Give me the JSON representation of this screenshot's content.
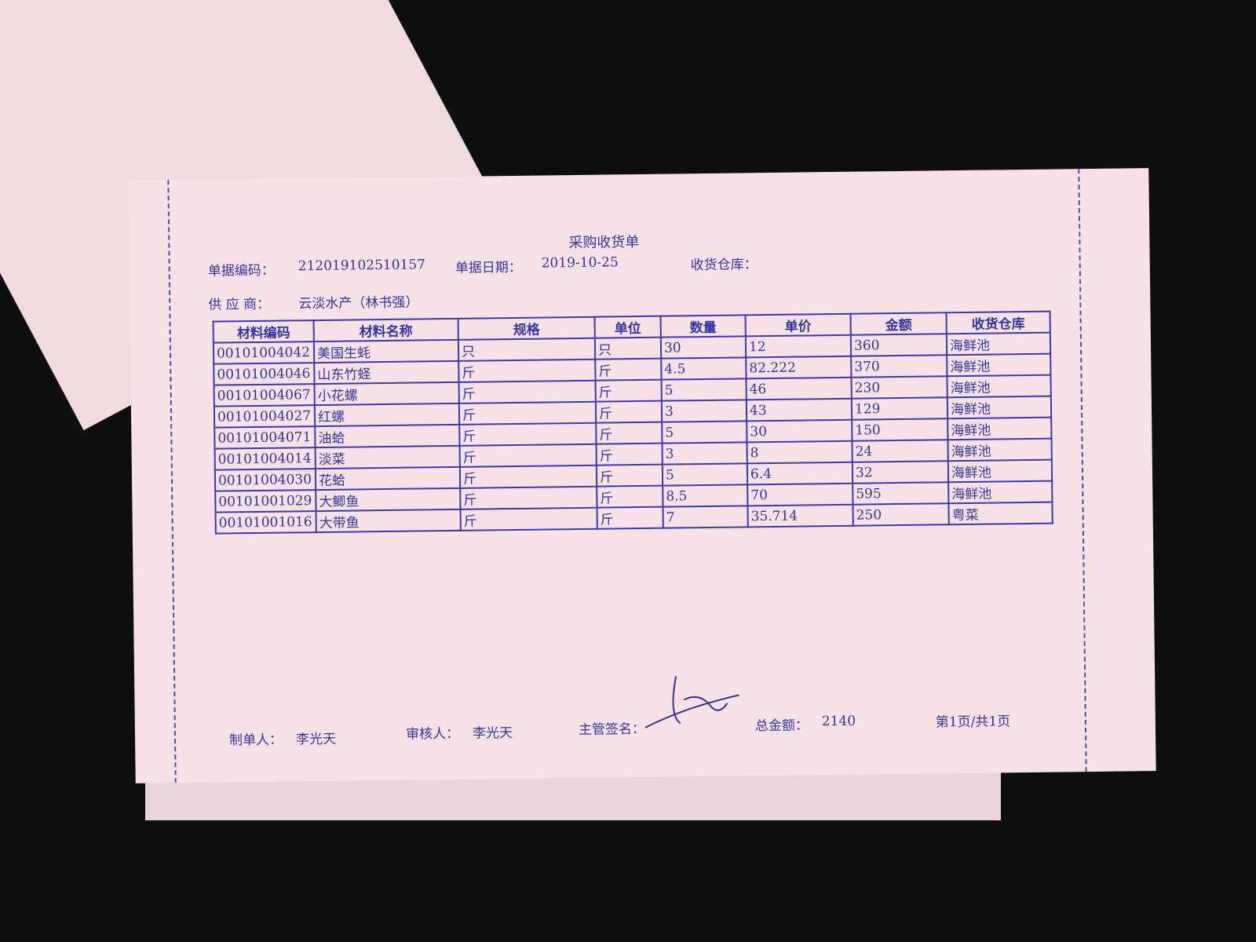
{
  "header": {
    "title": "采购收货单",
    "doc_no_label": "单据编码：",
    "doc_no": "212019102510157",
    "date_label": "单据日期：",
    "date": "2019-10-25",
    "warehouse_label": "收货仓库：",
    "supplier_label": "供 应 商：",
    "supplier": "云淡水产（林书强）"
  },
  "table": {
    "columns": [
      "材料编码",
      "材料名称",
      "规格",
      "单位",
      "数量",
      "单价",
      "金额",
      "收货仓库"
    ],
    "rows": [
      [
        "00101004042",
        "美国生蚝",
        "只",
        "只",
        30,
        12,
        360,
        "海鲜池"
      ],
      [
        "00101004046",
        "山东竹蛏",
        "斤",
        "斤",
        4.5,
        82.222,
        370,
        "海鲜池"
      ],
      [
        "00101004067",
        "小花螺",
        "斤",
        "斤",
        5,
        46,
        230,
        "海鲜池"
      ],
      [
        "00101004027",
        "红螺",
        "斤",
        "斤",
        3,
        43,
        129,
        "海鲜池"
      ],
      [
        "00101004071",
        "油蛤",
        "斤",
        "斤",
        5,
        30,
        150,
        "海鲜池"
      ],
      [
        "00101004014",
        "淡菜",
        "斤",
        "斤",
        3,
        8,
        24,
        "海鲜池"
      ],
      [
        "00101004030",
        "花蛤",
        "斤",
        "斤",
        5,
        6.4,
        32,
        "海鲜池"
      ],
      [
        "00101001029",
        "大鲫鱼",
        "斤",
        "斤",
        8.5,
        70,
        595,
        "海鲜池"
      ],
      [
        "00101001016",
        "大带鱼",
        "斤",
        "斤",
        7,
        35.714,
        250,
        "粤菜"
      ]
    ]
  },
  "footer": {
    "maker_label": "制单人：",
    "maker": "李光天",
    "reviewer_label": "审核人：",
    "reviewer": "李光天",
    "manager_label": "主管签名：",
    "total_label": "总金额：",
    "total": 2140,
    "page": "第1页/共1页"
  }
}
